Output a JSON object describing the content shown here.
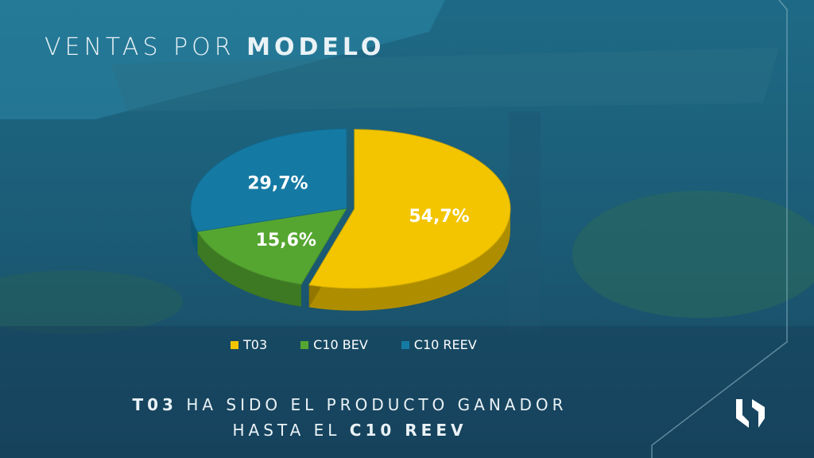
{
  "slide": {
    "title_light": "VENTAS POR",
    "title_bold": "MODELO",
    "footer_line1_bold": "T03",
    "footer_line1_rest": "HA SIDO EL PRODUCTO GANADOR",
    "footer_line2_rest": "HASTA EL",
    "footer_line2_bold": "C10 REEV"
  },
  "colors": {
    "T03": "#f2c500",
    "C10 BEV": "#55a630",
    "C10 REEV": "#157aa3"
  },
  "chart_data": {
    "type": "pie",
    "title": "",
    "categories": [
      "T03",
      "C10 BEV",
      "C10 REEV"
    ],
    "values": [
      54.7,
      15.6,
      29.7
    ],
    "labels": [
      "54,7%",
      "15,6%",
      "29,7%"
    ],
    "legend": [
      "T03",
      "C10 BEV",
      "C10 REEV"
    ],
    "legend_position": "bottom",
    "exploded": [
      "T03"
    ],
    "style": "3d"
  }
}
